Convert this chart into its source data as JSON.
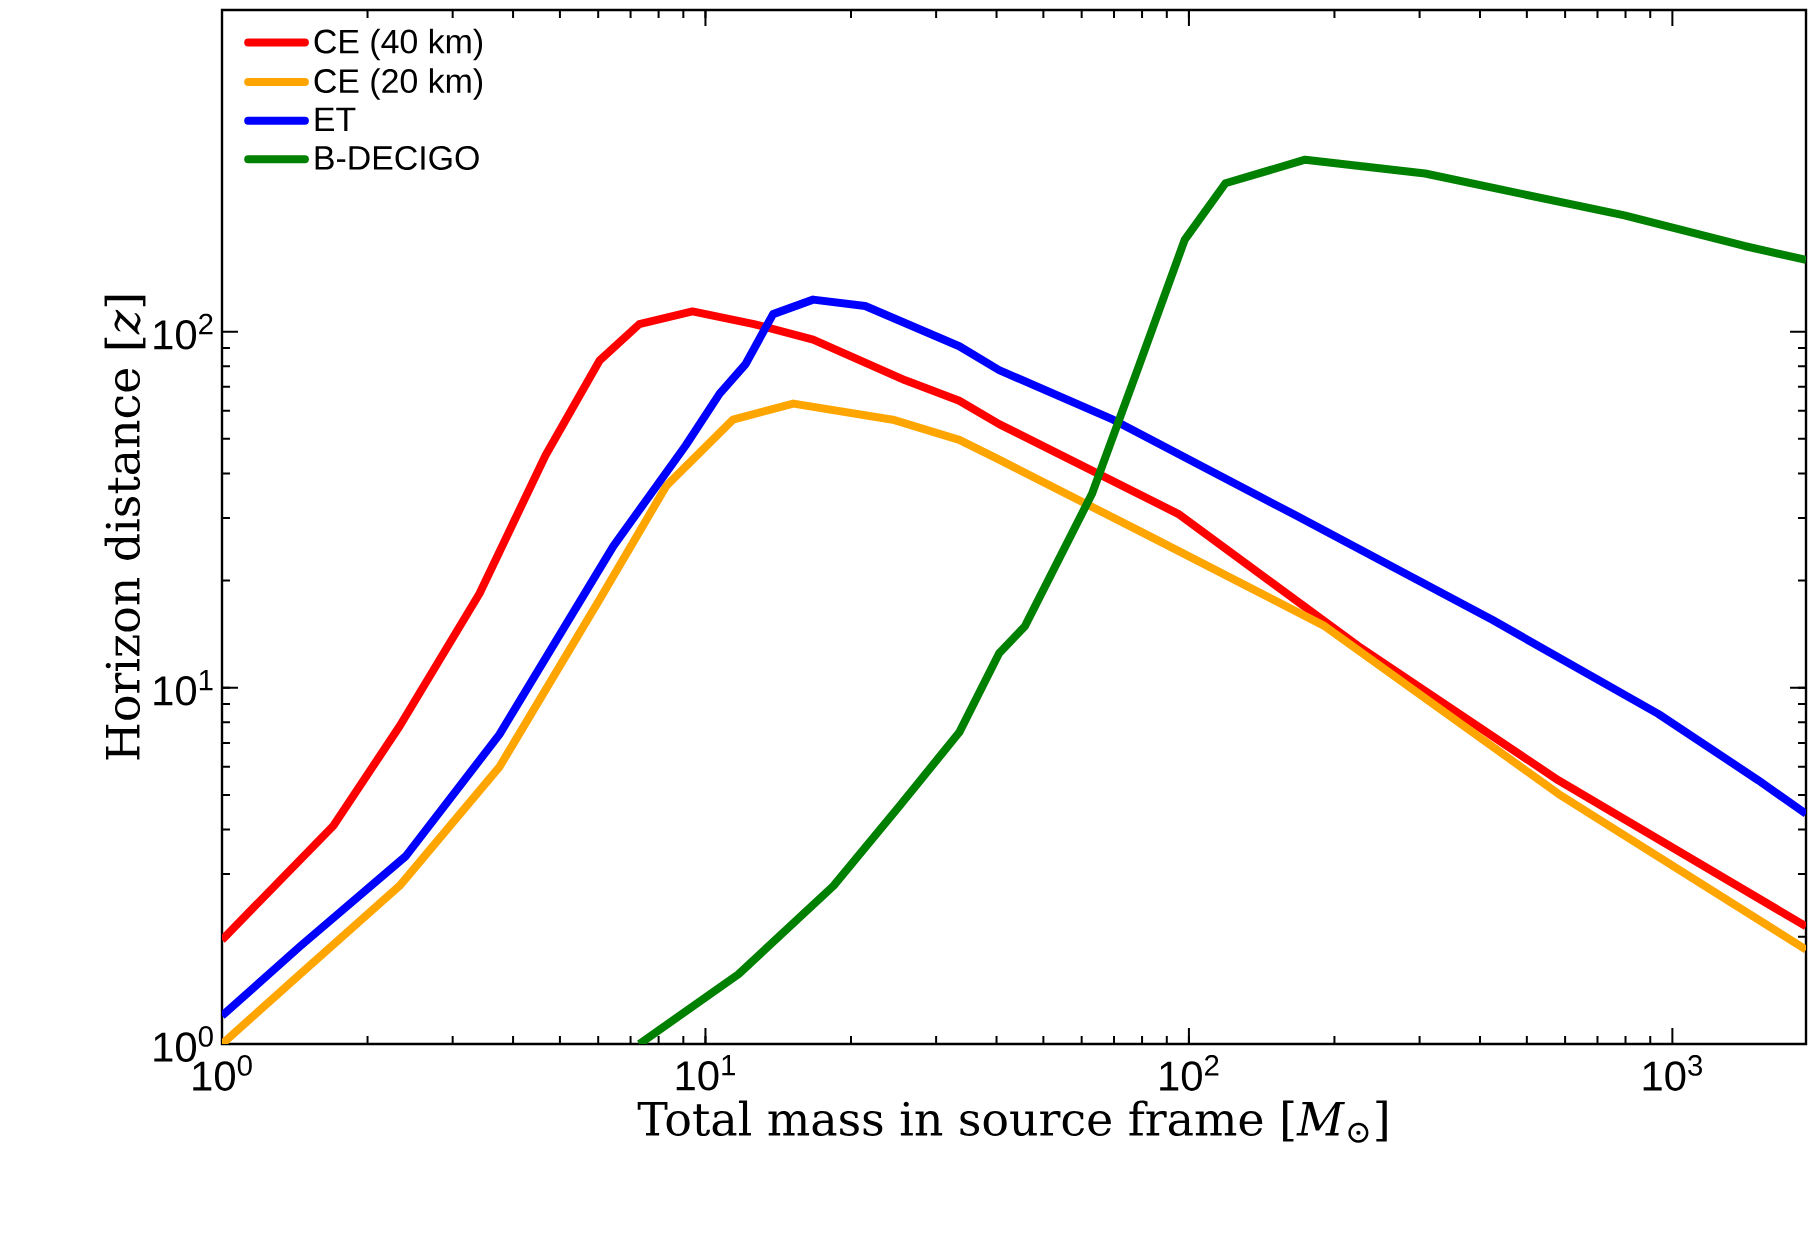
{
  "chart_data": {
    "type": "line",
    "xlabel": "Total mass in source frame [*M*$_{⊙}$]",
    "ylabel": "Horizon distance [*z*]",
    "log": "xy",
    "legend": "top left",
    "marker": "none",
    "line_style": "solid",
    "grid": false,
    "xlim": [
      1,
      1890
    ],
    "ylim": [
      1,
      800
    ],
    "xticks": [
      {
        "value": 1,
        "label": "10$^{0}$"
      },
      {
        "value": 10,
        "label": "10$^{1}$"
      },
      {
        "value": 100,
        "label": "10$^{2}$"
      },
      {
        "value": 1000,
        "label": "10$^{3}$"
      }
    ],
    "yticks": [
      {
        "value": 1,
        "label": "10$^{0}$"
      },
      {
        "value": 10,
        "label": "10$^{1}$"
      },
      {
        "value": 100,
        "label": "10$^{2}$"
      }
    ],
    "series": [
      {
        "name": "CE (40 km)",
        "color": "#ff0000",
        "x": [
          1,
          1.7,
          2.33,
          3.41,
          4.67,
          6.04,
          7.3,
          9.4,
          12.6,
          16.7,
          25.9,
          33.5,
          40.5,
          95,
          224,
          581,
          1890
        ],
        "values": [
          1.96,
          4.1,
          7.8,
          18.4,
          45,
          83,
          105,
          114,
          105,
          95,
          73,
          64,
          55,
          30.8,
          13.1,
          5.5,
          2.14
        ]
      },
      {
        "name": "CE (20 km)",
        "color": "#ffa500",
        "x": [
          1,
          1.45,
          2.33,
          3.75,
          6.04,
          8.3,
          11.4,
          15.2,
          24.4,
          33.5,
          40.5,
          81,
          191,
          581,
          1890
        ],
        "values": [
          1.0,
          1.57,
          2.78,
          6.0,
          17.7,
          36.9,
          56.6,
          62.8,
          56.6,
          49.7,
          43.7,
          27.1,
          14.9,
          5.04,
          1.84
        ]
      },
      {
        "name": "ET",
        "color": "#0000ff",
        "x": [
          1,
          1.45,
          2.4,
          3.75,
          6.45,
          9.1,
          10.7,
          12.1,
          13.8,
          16.7,
          21.4,
          33.5,
          40.5,
          69.7,
          164,
          425,
          935,
          1506,
          1890
        ],
        "values": [
          1.2,
          1.88,
          3.37,
          7.4,
          25,
          47.9,
          67,
          81,
          112,
          123,
          118,
          91,
          78,
          56.6,
          30.8,
          15.5,
          8.45,
          5.5,
          4.43
        ]
      },
      {
        "name": "B-DECIGO",
        "color": "#008000",
        "x": [
          7.3,
          11.7,
          18.4,
          25.2,
          33.5,
          40.5,
          45.8,
          63,
          78.8,
          98,
          119,
          174,
          308,
          796,
          1409,
          1890
        ],
        "values": [
          1.0,
          1.57,
          2.78,
          4.66,
          7.5,
          12.5,
          14.9,
          35,
          80,
          181,
          261,
          304,
          278,
          212,
          174,
          159
        ]
      }
    ]
  }
}
